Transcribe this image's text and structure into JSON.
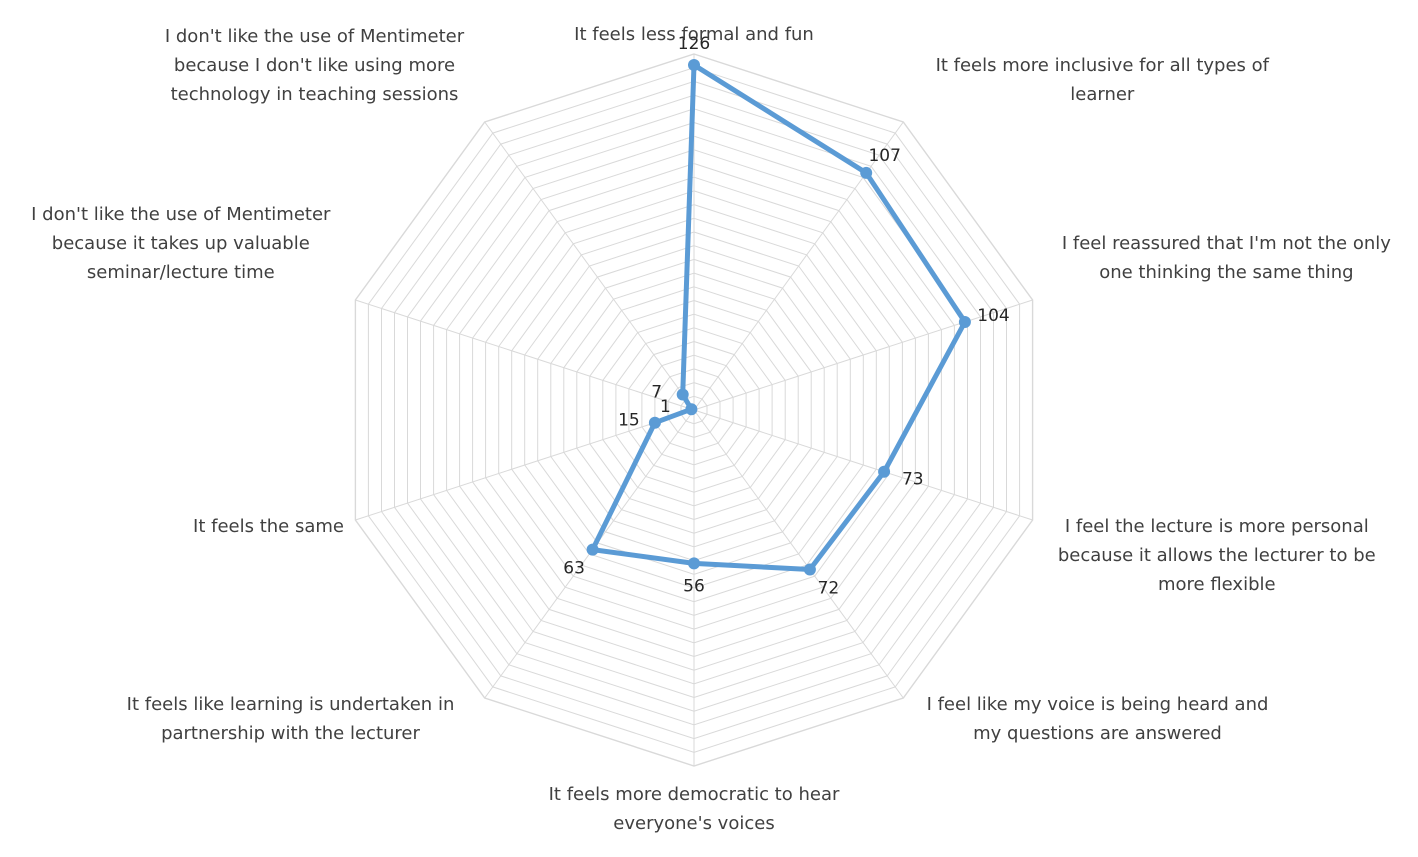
{
  "chart_data": {
    "type": "radar",
    "title": "",
    "categories": [
      [
        "It feels less formal and fun"
      ],
      [
        "It feels more inclusive for all types of",
        "learner"
      ],
      [
        "I feel reassured that I'm not the only",
        "one thinking the same thing"
      ],
      [
        "I feel the lecture is more personal",
        "because it allows the lecturer to be",
        "more flexible"
      ],
      [
        "I feel like my voice is being heard and",
        "my questions are answered"
      ],
      [
        "It feels more democratic to hear",
        "everyone's voices"
      ],
      [
        "It feels like learning is undertaken in",
        "partnership with the lecturer"
      ],
      [
        "It feels the same"
      ],
      [
        "I don't like the use of Mentimeter",
        "because it takes up valuable",
        "seminar/lecture time"
      ],
      [
        "I don't like the use of Mentimeter",
        "because I don't like using more",
        "technology in teaching sessions"
      ]
    ],
    "values": [
      126,
      107,
      104,
      73,
      72,
      56,
      63,
      15,
      1,
      7
    ],
    "value_labels": [
      "126",
      "107",
      "104",
      "73",
      "72",
      "56",
      "63",
      "15",
      "1",
      "7"
    ],
    "rmax": 130,
    "gridlines": true,
    "gridline_count": 26,
    "legend": "none",
    "colors": {
      "series": "#5B9BD5",
      "grid": "#D9D9D9",
      "text": "#404040"
    }
  }
}
